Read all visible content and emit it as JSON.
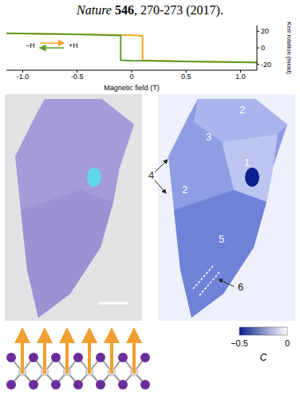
{
  "citation": {
    "journal": "Nature",
    "volume": "546",
    "pages": ", 270-273 (2017)."
  },
  "chart_data": {
    "type": "line",
    "x_label": "Magnetic field (T)",
    "y_label": "Kerr rotation (mrad)",
    "annotations": [
      "−H",
      "+H"
    ],
    "xlim": [
      -1.15,
      1.15
    ],
    "xticks": [
      {
        "value": -1,
        "label": "-1.0"
      },
      -0.5,
      0,
      0.5,
      {
        "value": 1,
        "label": "1.0"
      }
    ],
    "ylim": [
      -27,
      27
    ],
    "yticks": [
      -20,
      0,
      20
    ],
    "grid": false,
    "series": [
      {
        "color": "#f5a623",
        "x": [
          -1.15,
          -0.5,
          0,
          0.1,
          0.1,
          0.5,
          1.15
        ],
        "values": [
          17.5,
          16.5,
          15.5,
          14.5,
          -15,
          -16.5,
          -17.5
        ]
      },
      {
        "color": "#5a9e2a",
        "x": [
          1.15,
          0.5,
          0,
          -0.1,
          -0.1,
          -0.5,
          -1.15
        ],
        "values": [
          -17.5,
          -16.5,
          -15.5,
          -15,
          15,
          16.5,
          17.5
        ]
      }
    ]
  },
  "map": {
    "region_labels": [
      2,
      3,
      1,
      4,
      2,
      5,
      6
    ],
    "colorbar": {
      "label": "C",
      "range": [
        -0.5,
        0
      ],
      "ticks": [
        {
          "value": -0.5,
          "label": "−0.5"
        },
        0
      ]
    }
  }
}
